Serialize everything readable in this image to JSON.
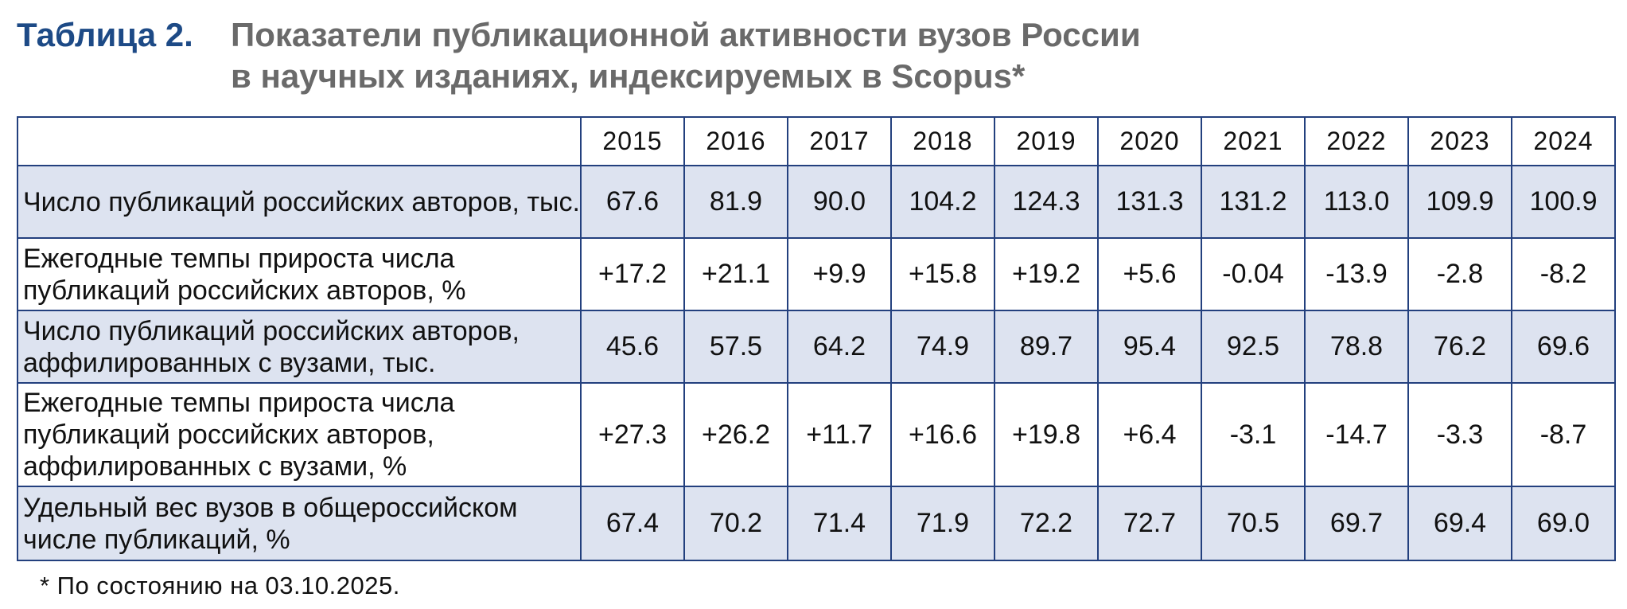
{
  "header": {
    "label": "Таблица 2.",
    "title_lines": [
      "Показатели публикационной активности вузов России",
      "в научных изданиях, индексируемых в Scopus*"
    ]
  },
  "table": {
    "columns": [
      "2015",
      "2016",
      "2017",
      "2018",
      "2019",
      "2020",
      "2021",
      "2022",
      "2023",
      "2024"
    ],
    "rows": [
      {
        "label": "Число публикаций российских авторов, тыс.",
        "cells": [
          "67.6",
          "81.9",
          "90.0",
          "104.2",
          "124.3",
          "131.3",
          "131.2",
          "113.0",
          "109.9",
          "100.9"
        ]
      },
      {
        "label": "Ежегодные темпы прироста числа публикаций российских авторов, %",
        "cells": [
          "+17.2",
          "+21.1",
          "+9.9",
          "+15.8",
          "+19.2",
          "+5.6",
          "-0.04",
          "-13.9",
          "-2.8",
          "-8.2"
        ]
      },
      {
        "label": "Число публикаций российских авторов, аффилированных с вузами, тыс.",
        "cells": [
          "45.6",
          "57.5",
          "64.2",
          "74.9",
          "89.7",
          "95.4",
          "92.5",
          "78.8",
          "76.2",
          "69.6"
        ]
      },
      {
        "label": "Ежегодные темпы прироста числа публикаций российских авторов, аффилированных с вузами, %",
        "cells": [
          "+27.3",
          "+26.2",
          "+11.7",
          "+16.6",
          "+19.8",
          "+6.4",
          "-3.1",
          "-14.7",
          "-3.3",
          "-8.7"
        ]
      },
      {
        "label": "Удельный вес вузов в общероссийском числе публикаций, %",
        "cells": [
          "67.4",
          "70.2",
          "71.4",
          "71.9",
          "72.2",
          "72.7",
          "70.5",
          "69.7",
          "69.4",
          "69.0"
        ]
      }
    ]
  },
  "footnote": "* По состоянию на 03.10.2025."
}
